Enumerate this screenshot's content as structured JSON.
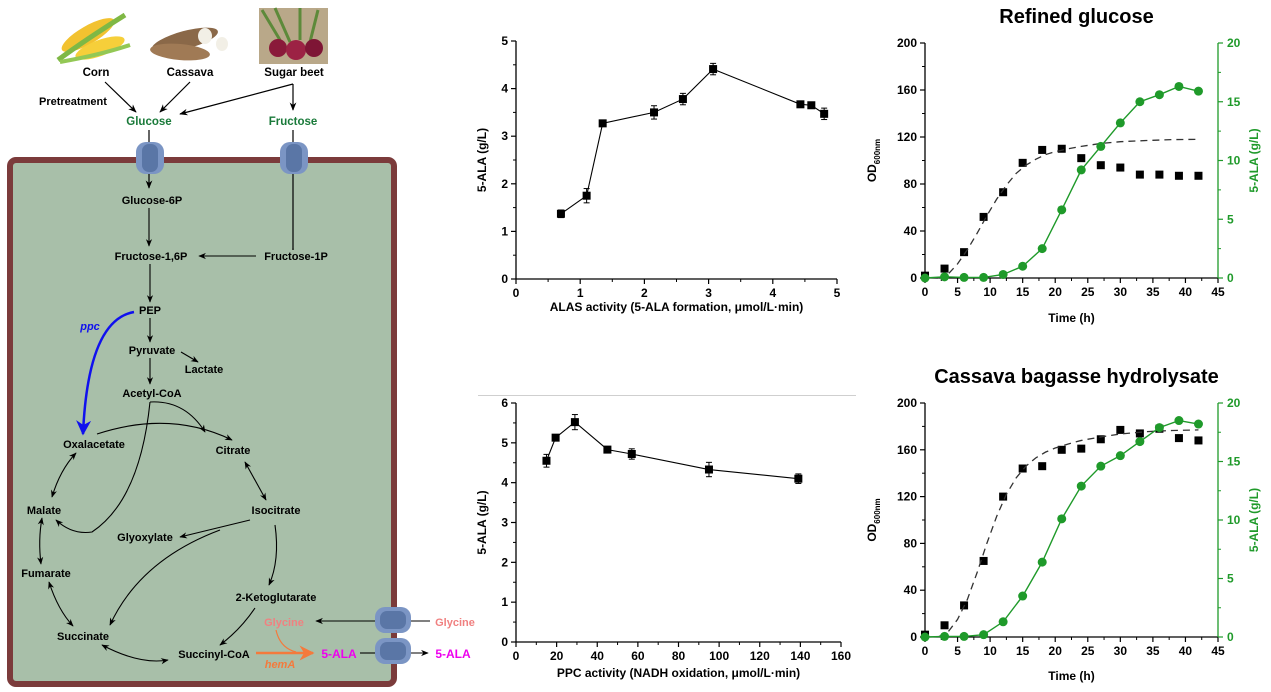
{
  "pathway": {
    "sources": [
      {
        "label": "Corn",
        "icon": "corn-image"
      },
      {
        "label": "Cassava",
        "icon": "cassava-image"
      },
      {
        "label": "Sugar beet",
        "icon": "sugar-beet-image"
      }
    ],
    "pretreatment": "Pretreatment",
    "sugars": {
      "glucose": "Glucose",
      "fructose": "Fructose"
    },
    "metabolites": {
      "glucose6p": "Glucose-6P",
      "fructose16p": "Fructose-1,6P",
      "fructose1p": "Fructose-1P",
      "pep": "PEP",
      "pyruvate": "Pyruvate",
      "lactate": "Lactate",
      "acetylcoa": "Acetyl-CoA",
      "oxalacetate": "Oxalacetate",
      "citrate": "Citrate",
      "malate": "Malate",
      "isocitrate": "Isocitrate",
      "glyoxylate": "Glyoxylate",
      "fumarate": "Fumarate",
      "ketoglutarate": "2-Ketoglutarate",
      "succinate": "Succinate",
      "succinylcoa": "Succinyl-CoA",
      "glycine_in": "Glycine",
      "glycine_out": "Glycine",
      "ala_in": "5-ALA",
      "ala_out": "5-ALA"
    },
    "genes": {
      "ppc": "ppc",
      "hemA": "hemA"
    },
    "colors": {
      "cell_fill": "#a8bfa9",
      "cell_border": "#7b3b3b",
      "sugar": "#1a7a3a",
      "ppc": "#1010ee",
      "hemA": "#f47a3c",
      "glycine": "#f08080",
      "ala": "#ee00ee",
      "transporter": "#6a86b5"
    }
  },
  "chart_data": [
    {
      "id": "alas",
      "type": "line",
      "title": "",
      "xlabel": "ALAS activity (5-ALA formation, μmol/L·min)",
      "ylabel": "5-ALA (g/L)",
      "xlim": [
        0,
        5
      ],
      "ylim": [
        0,
        5
      ],
      "xticks": [
        0,
        1,
        2,
        3,
        4,
        5
      ],
      "yticks": [
        0,
        1,
        2,
        3,
        4,
        5
      ],
      "x": [
        0.7,
        1.1,
        1.35,
        2.15,
        2.6,
        3.07,
        4.43,
        4.6,
        4.8
      ],
      "y": [
        1.37,
        1.75,
        3.27,
        3.5,
        3.78,
        4.41,
        3.67,
        3.65,
        3.47
      ],
      "err": [
        0.08,
        0.15,
        0.06,
        0.14,
        0.12,
        0.12,
        0.05,
        0.06,
        0.12
      ]
    },
    {
      "id": "ppc",
      "type": "line",
      "title": "",
      "xlabel": "PPC activity (NADH oxidation, μmol/L·min)",
      "ylabel": "5-ALA (g/L)",
      "xlim": [
        0,
        160
      ],
      "ylim": [
        0,
        6
      ],
      "xticks": [
        0,
        20,
        40,
        60,
        80,
        100,
        120,
        140,
        160
      ],
      "yticks": [
        0,
        1,
        2,
        3,
        4,
        5,
        6
      ],
      "x": [
        15,
        19.5,
        29,
        45,
        57,
        95,
        139
      ],
      "y": [
        4.55,
        5.13,
        5.52,
        4.83,
        4.72,
        4.33,
        4.1
      ],
      "err": [
        0.16,
        0.06,
        0.19,
        0.06,
        0.13,
        0.18,
        0.12
      ]
    },
    {
      "id": "refined",
      "type": "scatter",
      "title": "Refined glucose",
      "xlabel": "Time (h)",
      "ylabel": "OD",
      "ylabel_sub": "600nm",
      "y2label": "5-ALA (g/L)",
      "xlim": [
        0,
        45
      ],
      "ylim": [
        0,
        200
      ],
      "y2lim": [
        0,
        20
      ],
      "xticks": [
        0,
        5,
        10,
        15,
        20,
        25,
        30,
        35,
        40,
        45
      ],
      "yticks": [
        0,
        40,
        80,
        120,
        160,
        200
      ],
      "y2ticks": [
        0,
        5,
        10,
        15,
        20
      ],
      "series": [
        {
          "name": "OD600nm",
          "marker": "square",
          "color": "#000000",
          "axis": "left",
          "x": [
            0,
            3,
            6,
            9,
            12,
            15,
            18,
            21,
            24,
            27,
            30,
            33,
            36,
            39,
            42
          ],
          "values": [
            2,
            8,
            22,
            52,
            73,
            98,
            109,
            110,
            102,
            96,
            94,
            88,
            88,
            87,
            87
          ]
        },
        {
          "name": "OD fit",
          "style": "dashed",
          "color": "#333333",
          "axis": "left",
          "x": [
            2,
            3.5,
            5,
            6.5,
            8,
            9.5,
            11,
            12.5,
            14,
            15.5,
            17,
            18.5,
            20,
            22,
            24,
            27,
            30,
            34,
            38,
            42
          ],
          "values": [
            0,
            3,
            12,
            24,
            38,
            53,
            67,
            79,
            89,
            96,
            101,
            105,
            107.5,
            110,
            112,
            114.5,
            116,
            117,
            117.8,
            118
          ]
        },
        {
          "name": "5-ALA",
          "marker": "circle",
          "color": "#1f9a2a",
          "axis": "right",
          "x": [
            0,
            3,
            6,
            9,
            12,
            15,
            18,
            21,
            24,
            27,
            30,
            33,
            36,
            39,
            42
          ],
          "values": [
            0,
            0.1,
            0.05,
            0.05,
            0.3,
            1.0,
            2.5,
            5.8,
            9.2,
            11.2,
            13.2,
            15.0,
            15.6,
            16.3,
            15.9
          ]
        }
      ]
    },
    {
      "id": "cassava",
      "type": "scatter",
      "title": "Cassava bagasse hydrolysate",
      "xlabel": "Time (h)",
      "ylabel": "OD",
      "ylabel_sub": "600nm",
      "y2label": "5-ALA (g/L)",
      "xlim": [
        0,
        45
      ],
      "ylim": [
        0,
        200
      ],
      "y2lim": [
        0,
        20
      ],
      "xticks": [
        0,
        5,
        10,
        15,
        20,
        25,
        30,
        35,
        40,
        45
      ],
      "yticks": [
        0,
        40,
        80,
        120,
        160,
        200
      ],
      "y2ticks": [
        0,
        5,
        10,
        15,
        20
      ],
      "series": [
        {
          "name": "OD600nm",
          "marker": "square",
          "color": "#000000",
          "axis": "left",
          "x": [
            0,
            3,
            6,
            9,
            12,
            15,
            18,
            21,
            24,
            27,
            30,
            33,
            36,
            39,
            42
          ],
          "values": [
            2,
            10,
            27,
            65,
            120,
            144,
            146,
            160,
            161,
            169,
            177,
            174,
            178,
            170,
            168
          ]
        },
        {
          "name": "OD fit",
          "style": "dashed",
          "color": "#333333",
          "axis": "left",
          "x": [
            2,
            3.5,
            5,
            6.5,
            8,
            9.5,
            11,
            12.5,
            14,
            15.5,
            17,
            18.5,
            20,
            22,
            24,
            27,
            30,
            34,
            38,
            42
          ],
          "values": [
            0,
            4,
            15,
            32,
            55,
            80,
            103,
            122,
            136,
            146,
            153,
            158,
            161.5,
            165,
            168,
            171,
            173.5,
            175.5,
            176.5,
            177
          ]
        },
        {
          "name": "5-ALA",
          "marker": "circle",
          "color": "#1f9a2a",
          "axis": "right",
          "x": [
            0,
            3,
            6,
            9,
            12,
            15,
            18,
            21,
            24,
            27,
            30,
            33,
            36,
            39,
            42
          ],
          "values": [
            0,
            0.05,
            0.05,
            0.2,
            1.3,
            3.5,
            6.4,
            10.1,
            12.9,
            14.6,
            15.5,
            16.7,
            17.9,
            18.5,
            18.2
          ]
        }
      ]
    }
  ]
}
